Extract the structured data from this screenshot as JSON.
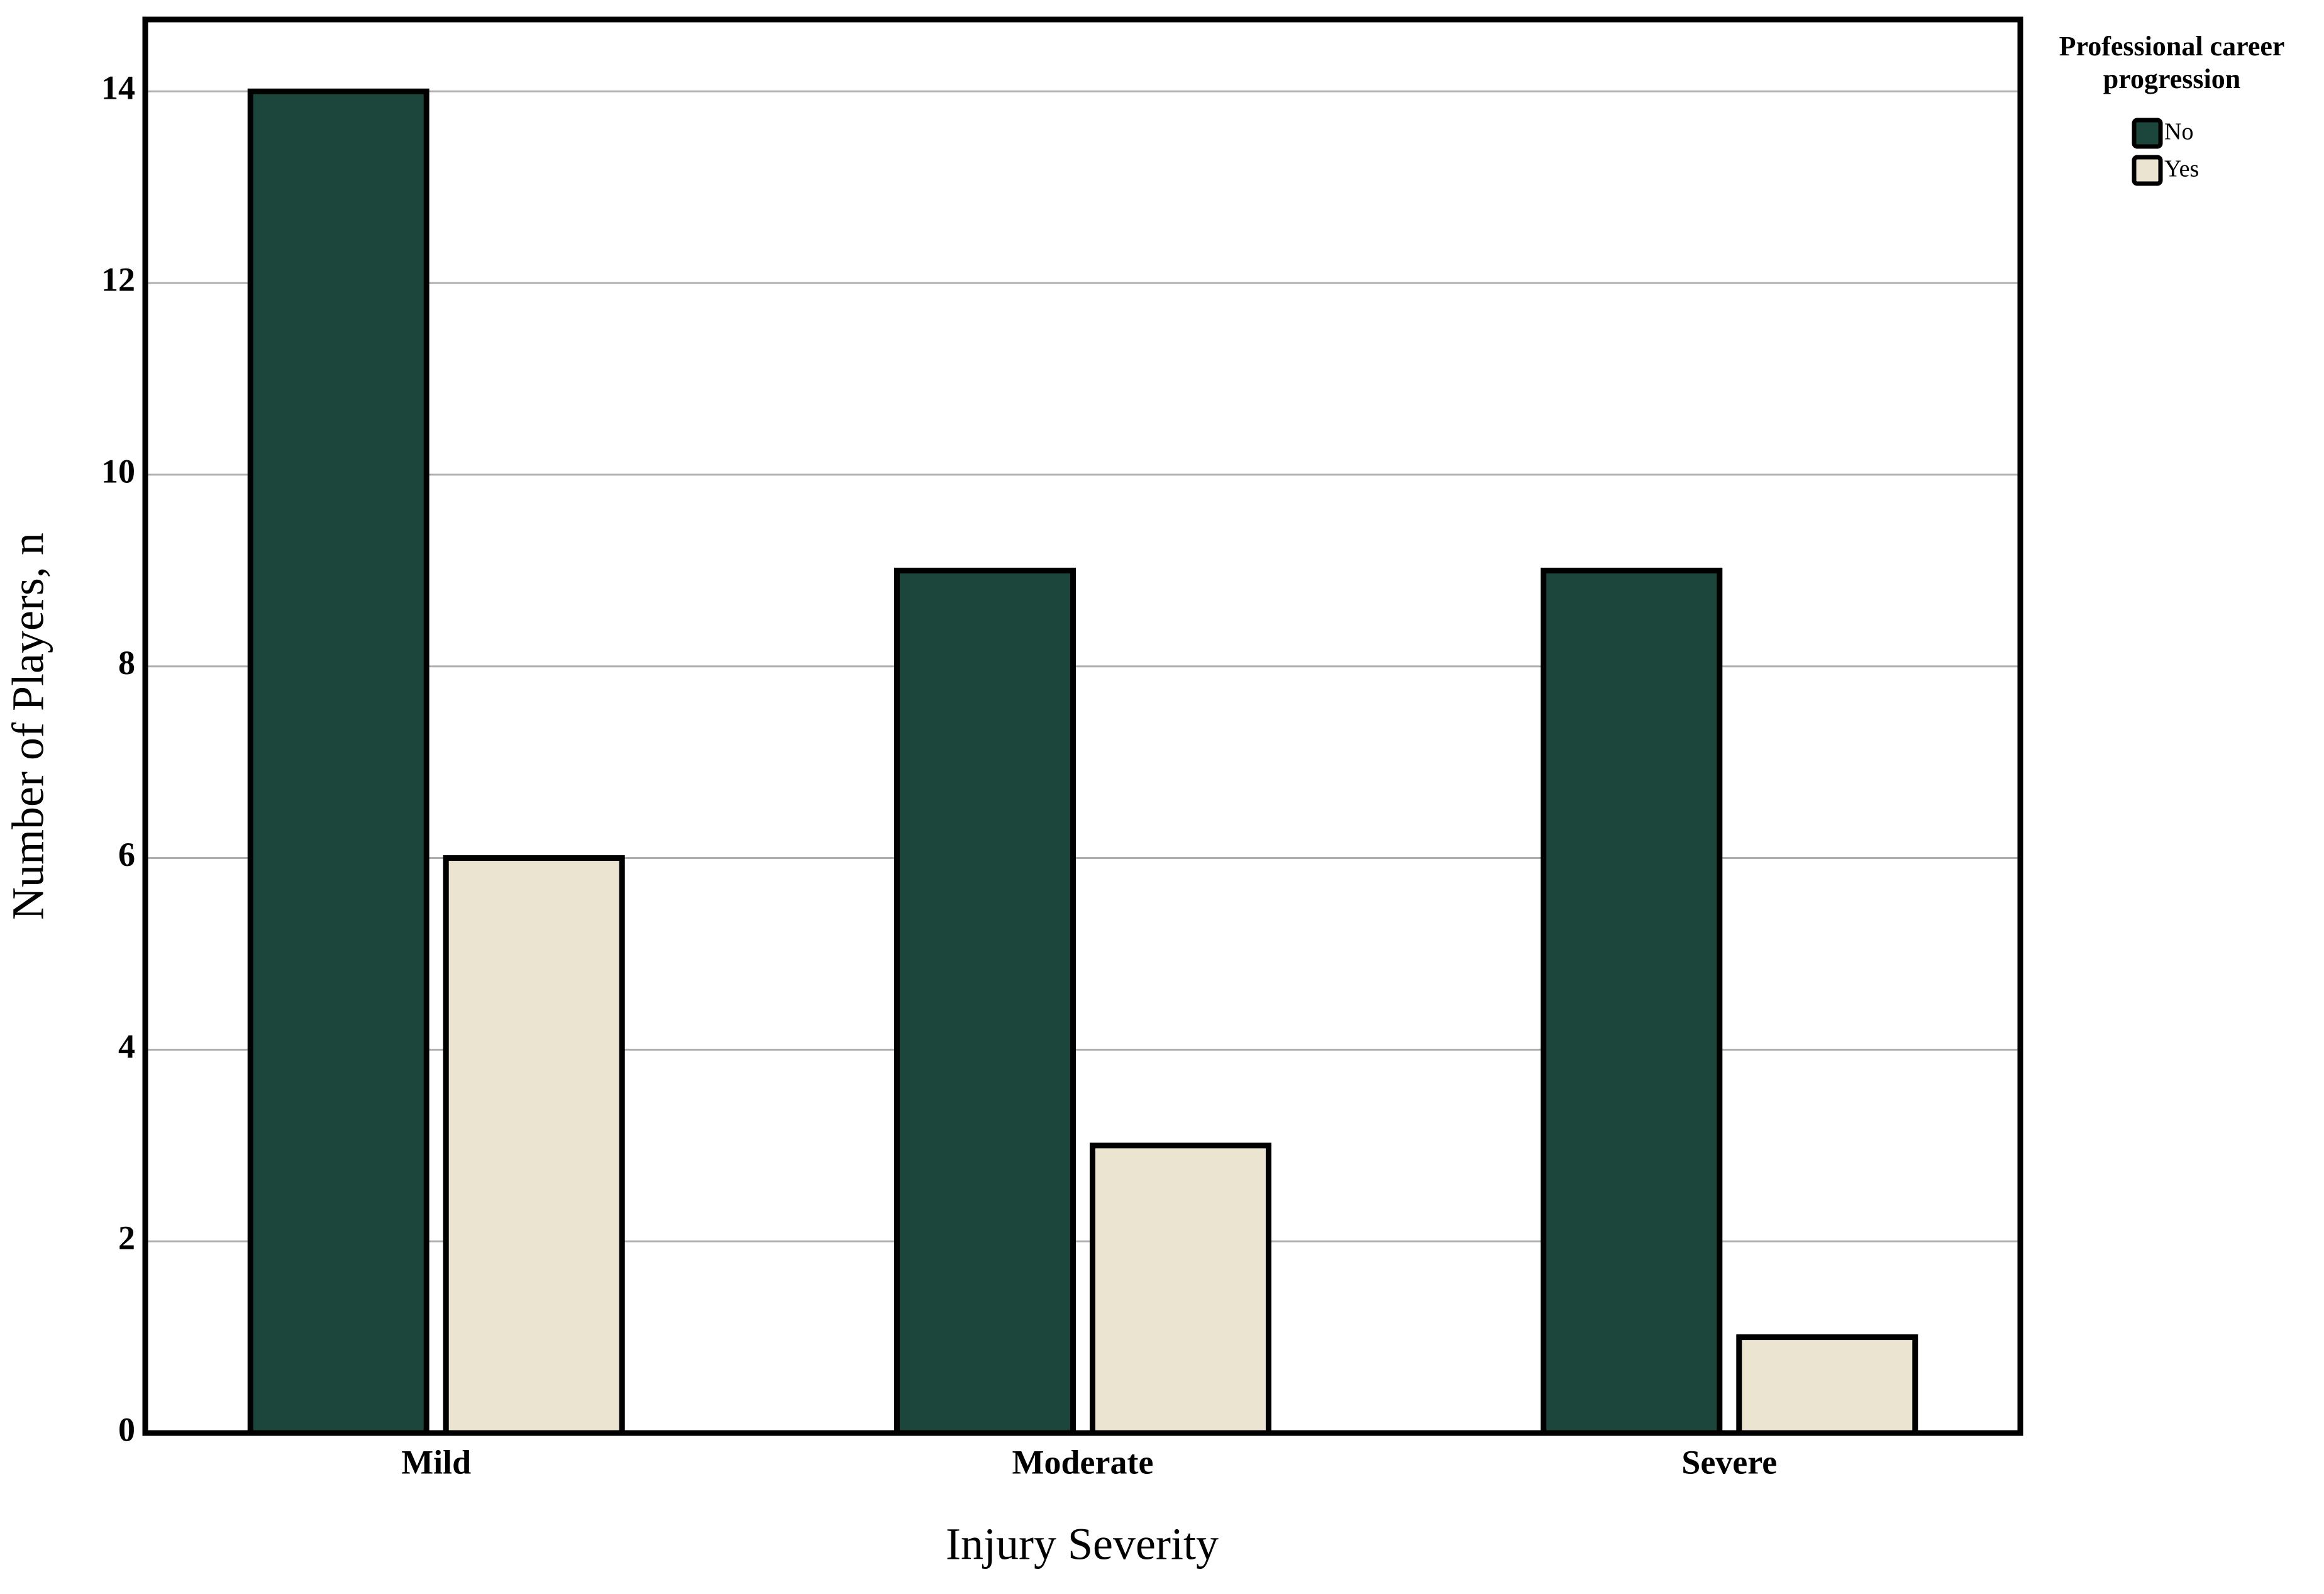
{
  "chart_data": {
    "type": "bar",
    "x_label": "Injury Severity",
    "y_label": "Number of Players, n",
    "legend_title": "Professional career progression",
    "legend": "right",
    "categories": [
      "Mild",
      "Moderate",
      "Severe"
    ],
    "series": [
      {
        "name": "No",
        "color": "#1c453b",
        "values": [
          14,
          9,
          9
        ]
      },
      {
        "name": "Yes",
        "color": "#ebe4d0",
        "values": [
          6,
          3,
          1
        ]
      }
    ],
    "ylim": [
      0,
      14.75
    ],
    "yticks": [
      0,
      2,
      4,
      6,
      8,
      10,
      12,
      14
    ],
    "grid": true
  }
}
